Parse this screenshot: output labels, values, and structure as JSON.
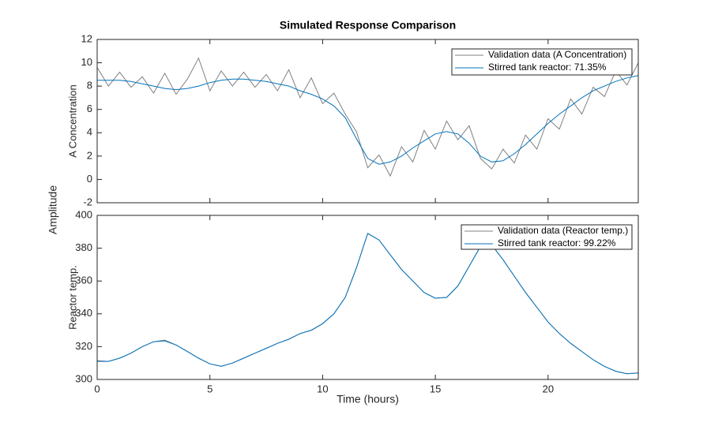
{
  "ylabel": "Amplitude",
  "chart_data": [
    {
      "type": "line",
      "title": "Simulated Response Comparison",
      "ylabel": "A Concentration",
      "x": [
        0,
        0.5,
        1,
        1.5,
        2,
        2.5,
        3,
        3.5,
        4,
        4.5,
        5,
        5.5,
        6,
        6.5,
        7,
        7.5,
        8,
        8.5,
        9,
        9.5,
        10,
        10.5,
        11,
        11.5,
        12,
        12.5,
        13,
        13.5,
        14,
        14.5,
        15,
        15.5,
        16,
        16.5,
        17,
        17.5,
        18,
        18.5,
        19,
        19.5,
        20,
        20.5,
        21,
        21.5,
        22,
        22.5,
        23,
        23.5,
        24
      ],
      "series": [
        {
          "name": "Validation data (A Concentration)",
          "color": "#808080",
          "values": [
            9.6,
            8.0,
            9.2,
            7.9,
            8.8,
            7.4,
            9.1,
            7.3,
            8.6,
            10.4,
            7.6,
            9.3,
            8.0,
            9.2,
            7.9,
            9.0,
            7.6,
            9.4,
            7.0,
            8.7,
            6.5,
            7.4,
            5.6,
            4.1,
            1.0,
            2.1,
            0.3,
            2.8,
            1.5,
            4.2,
            2.6,
            5.0,
            3.4,
            4.6,
            1.8,
            0.9,
            2.6,
            1.4,
            3.8,
            2.6,
            5.2,
            4.3,
            6.9,
            5.6,
            7.9,
            7.1,
            9.3,
            8.1,
            10.0
          ]
        },
        {
          "name": "Stirred tank reactor: 71.35%",
          "color": "#0072BD",
          "values": [
            8.5,
            8.5,
            8.5,
            8.4,
            8.2,
            8.0,
            7.8,
            7.7,
            7.8,
            8.0,
            8.3,
            8.5,
            8.6,
            8.6,
            8.5,
            8.4,
            8.2,
            8.0,
            7.6,
            7.3,
            6.9,
            6.3,
            5.3,
            3.5,
            1.8,
            1.3,
            1.5,
            2.0,
            2.7,
            3.3,
            3.9,
            4.1,
            3.9,
            3.1,
            2.0,
            1.5,
            1.6,
            2.2,
            3.0,
            3.9,
            4.8,
            5.6,
            6.3,
            7.0,
            7.6,
            8.0,
            8.4,
            8.7,
            8.9
          ]
        }
      ],
      "xlim": [
        0,
        24
      ],
      "xticks": [
        0,
        5,
        10,
        15,
        20
      ],
      "ylim": [
        -2,
        12
      ],
      "yticks": [
        -2,
        0,
        2,
        4,
        6,
        8,
        10,
        12
      ],
      "legend": "upper right",
      "grid": false
    },
    {
      "type": "line",
      "ylabel": "Reactor temp.",
      "xlabel": "Time (hours)",
      "x": [
        0,
        0.5,
        1,
        1.5,
        2,
        2.5,
        3,
        3.5,
        4,
        4.5,
        5,
        5.5,
        6,
        6.5,
        7,
        7.5,
        8,
        8.5,
        9,
        9.5,
        10,
        10.5,
        11,
        11.5,
        12,
        12.5,
        13,
        13.5,
        14,
        14.5,
        15,
        15.5,
        16,
        16.5,
        17,
        17.5,
        18,
        18.5,
        19,
        19.5,
        20,
        20.5,
        21,
        21.5,
        22,
        22.5,
        23,
        23.5,
        24
      ],
      "series": [
        {
          "name": "Validation data (Reactor temp.)",
          "color": "#808080",
          "values": [
            311.5,
            311,
            313,
            316,
            320,
            323,
            324,
            321,
            317,
            313,
            309.5,
            308,
            310,
            313,
            316,
            319,
            322,
            324.5,
            328,
            330,
            334,
            340,
            350,
            368,
            389,
            385,
            376,
            367,
            360,
            353,
            349.5,
            350,
            357,
            369,
            381,
            382,
            373,
            363,
            353,
            344,
            335,
            328,
            322,
            317,
            312,
            308,
            305,
            303.5,
            304
          ]
        },
        {
          "name": "Stirred tank reactor: 99.22%",
          "color": "#0072BD",
          "values": [
            311,
            311,
            313,
            316,
            320,
            323,
            323.5,
            321,
            317,
            313,
            309.5,
            308,
            310,
            313,
            316,
            319,
            322,
            324.5,
            328,
            330,
            334,
            340,
            350,
            368,
            389,
            385,
            376,
            367,
            360,
            353,
            349.5,
            350,
            357,
            369,
            381,
            382,
            373,
            363,
            353,
            344,
            335,
            328,
            322,
            317,
            312,
            308,
            305,
            303.5,
            304
          ]
        }
      ],
      "xlim": [
        0,
        24
      ],
      "xticks": [
        0,
        5,
        10,
        15,
        20
      ],
      "ylim": [
        300,
        400
      ],
      "yticks": [
        300,
        320,
        340,
        360,
        380,
        400
      ],
      "legend": "upper right",
      "grid": false
    }
  ]
}
